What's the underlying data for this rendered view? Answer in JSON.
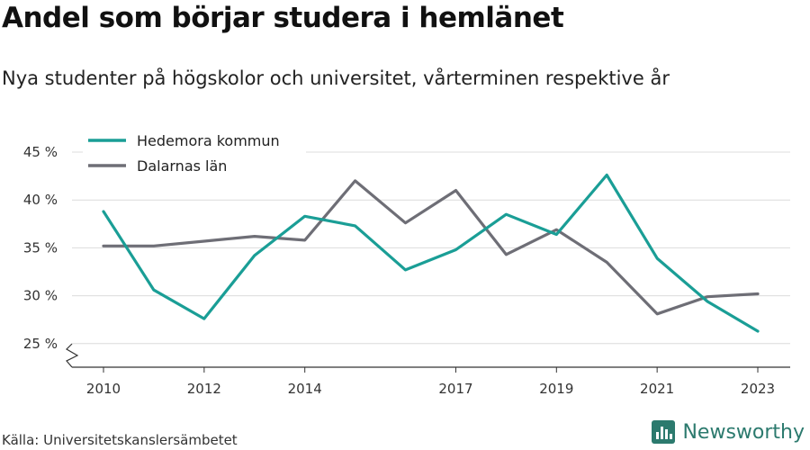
{
  "header": {
    "title": "Andel som börjar studera i hemlänet",
    "subtitle": "Nya studenter på högskolor och universitet, vårterminen respektive år"
  },
  "footer": {
    "source": "Källa: Universitetskanslersämbetet",
    "brand": "Newsworthy",
    "brand_icon": "bar-chart-logo-icon",
    "brand_color": "#2c7a6e"
  },
  "chart_data": {
    "type": "line",
    "x": [
      2010,
      2011,
      2012,
      2013,
      2014,
      2015,
      2016,
      2017,
      2018,
      2019,
      2020,
      2021,
      2022,
      2023
    ],
    "xticks": [
      2010,
      2012,
      2014,
      2017,
      2019,
      2021,
      2023
    ],
    "xtick_labels": [
      "2010",
      "2012",
      "2014",
      "2017",
      "2019",
      "2021",
      "2023"
    ],
    "yticks": [
      25,
      30,
      35,
      40,
      45
    ],
    "ytick_labels": [
      "25 %",
      "30 %",
      "35 %",
      "40 %",
      "45 %"
    ],
    "ylim": [
      23,
      46
    ],
    "axis_break": true,
    "grid": true,
    "legend_position": "top-left",
    "series": [
      {
        "name": "Hedemora kommun",
        "color": "#1a9e96",
        "values": [
          38.8,
          30.6,
          27.6,
          34.2,
          38.3,
          37.3,
          32.7,
          34.8,
          38.5,
          36.4,
          42.6,
          33.9,
          29.4,
          26.3
        ]
      },
      {
        "name": "Dalarnas län",
        "color": "#6e6e76",
        "values": [
          35.2,
          35.2,
          35.7,
          36.2,
          35.8,
          42.0,
          37.6,
          41.0,
          34.3,
          36.9,
          33.5,
          28.1,
          29.9,
          30.2
        ]
      }
    ]
  }
}
